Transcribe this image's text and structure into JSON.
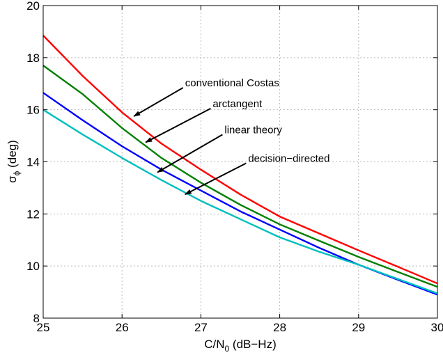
{
  "chart_data": {
    "type": "line",
    "title": "",
    "xlabel": "C/N",
    "xlabel_sub": "0",
    "xlabel_suffix": " (dB−Hz)",
    "ylabel_prefix": "σ",
    "ylabel_sub": "ϕ",
    "ylabel_suffix": " (deg)",
    "xlim": [
      25,
      30
    ],
    "ylim": [
      8,
      20
    ],
    "xticks": [
      25,
      26,
      27,
      28,
      29,
      30
    ],
    "yticks": [
      8,
      10,
      12,
      14,
      16,
      18,
      20
    ],
    "grid": true,
    "series": [
      {
        "name": "conventional Costas",
        "color": "#ff0000",
        "x": [
          25,
          25.5,
          26,
          26.5,
          27,
          27.5,
          28,
          28.5,
          29,
          29.5,
          30
        ],
        "y": [
          18.85,
          17.3,
          15.9,
          14.7,
          13.7,
          12.75,
          11.9,
          11.25,
          10.6,
          9.97,
          9.33
        ]
      },
      {
        "name": "arctangent",
        "color": "#008000",
        "x": [
          25,
          25.5,
          26,
          26.5,
          27,
          27.5,
          28,
          28.5,
          29,
          29.5,
          30
        ],
        "y": [
          17.7,
          16.6,
          15.3,
          14.15,
          13.2,
          12.35,
          11.6,
          10.97,
          10.35,
          9.77,
          9.2
        ]
      },
      {
        "name": "linear theory",
        "color": "#0000ff",
        "x": [
          25,
          25.5,
          26,
          26.5,
          27,
          27.5,
          28,
          28.5,
          29,
          29.5,
          30
        ],
        "y": [
          16.65,
          15.6,
          14.6,
          13.7,
          12.9,
          12.1,
          11.4,
          10.7,
          10.05,
          9.47,
          8.9
        ]
      },
      {
        "name": "decision−directed",
        "color": "#00bfbf",
        "x": [
          25,
          25.5,
          26,
          26.5,
          27,
          27.5,
          28,
          28.5,
          29,
          29.5,
          30
        ],
        "y": [
          16.0,
          15.05,
          14.15,
          13.3,
          12.5,
          11.8,
          11.1,
          10.55,
          10.05,
          9.5,
          8.95
        ]
      }
    ],
    "annotations": [
      {
        "text": "conventional Costas",
        "points_to": [
          26.15,
          15.75
        ],
        "text_at": [
          26.8,
          16.9
        ]
      },
      {
        "text": "arctangent",
        "points_to": [
          26.3,
          14.75
        ],
        "text_at": [
          27.15,
          16.1
        ]
      },
      {
        "text": "linear theory",
        "points_to": [
          26.45,
          13.6
        ],
        "text_at": [
          27.3,
          15.1
        ]
      },
      {
        "text": "decision−directed",
        "points_to": [
          26.8,
          12.75
        ],
        "text_at": [
          27.6,
          14.0
        ]
      }
    ]
  }
}
